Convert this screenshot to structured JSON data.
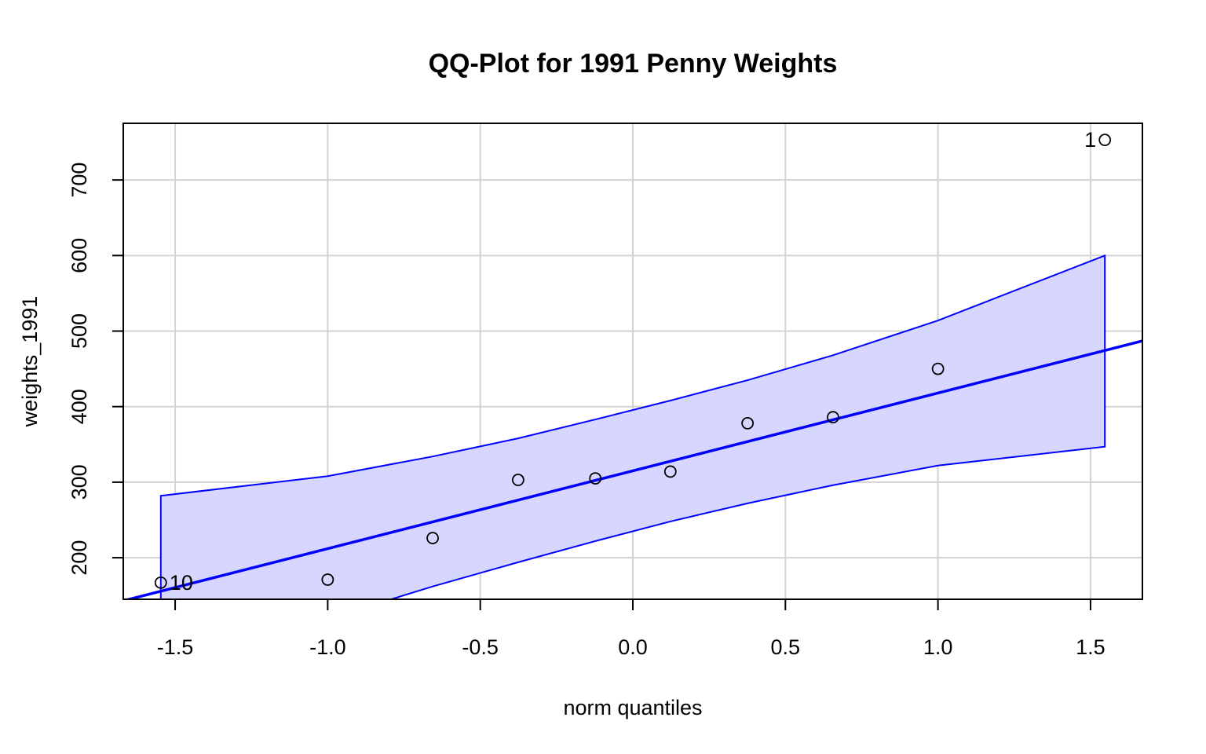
{
  "chart_data": {
    "type": "scatter",
    "title": "QQ-Plot for 1991 Penny Weights",
    "xlabel": "norm quantiles",
    "ylabel": "weights_1991",
    "xlim": [
      -1.67,
      1.67
    ],
    "ylim": [
      145,
      775
    ],
    "grid": true,
    "x_ticks": [
      -1.5,
      -1.0,
      -0.5,
      0.0,
      0.5,
      1.0,
      1.5
    ],
    "x_tick_labels": [
      "-1.5",
      "-1.0",
      "-0.5",
      "0.0",
      "0.5",
      "1.0",
      "1.5"
    ],
    "y_ticks": [
      200,
      300,
      400,
      500,
      600,
      700
    ],
    "y_tick_labels": [
      "200",
      "300",
      "400",
      "500",
      "600",
      "700"
    ],
    "points": [
      {
        "x": -1.547,
        "y": 167
      },
      {
        "x": -1.0,
        "y": 171
      },
      {
        "x": -0.656,
        "y": 226
      },
      {
        "x": -0.376,
        "y": 303
      },
      {
        "x": -0.123,
        "y": 305
      },
      {
        "x": 0.123,
        "y": 314
      },
      {
        "x": 0.376,
        "y": 378
      },
      {
        "x": 0.656,
        "y": 386
      },
      {
        "x": 1.0,
        "y": 450
      },
      {
        "x": 1.547,
        "y": 753
      }
    ],
    "point_labels": [
      {
        "text": "10",
        "x": -1.547,
        "y": 167
      },
      {
        "text": "1",
        "x": 1.547,
        "y": 753
      }
    ],
    "reference_line": {
      "intercept": 315,
      "slope": 103,
      "color": "#0000ff"
    },
    "envelope": {
      "x": [
        -1.547,
        -1.0,
        -0.656,
        -0.376,
        -0.123,
        0.123,
        0.376,
        0.656,
        1.0,
        1.547
      ],
      "upper": [
        282,
        308,
        334,
        358,
        383,
        408,
        435,
        468,
        514,
        600
      ],
      "lower": [
        48,
        119,
        162,
        194,
        222,
        248,
        272,
        296,
        322,
        347
      ],
      "fill": "#d6d6ff",
      "stroke": "#0000ff"
    },
    "colors": {
      "points": "#000000",
      "grid": "#d3d3d3"
    }
  }
}
